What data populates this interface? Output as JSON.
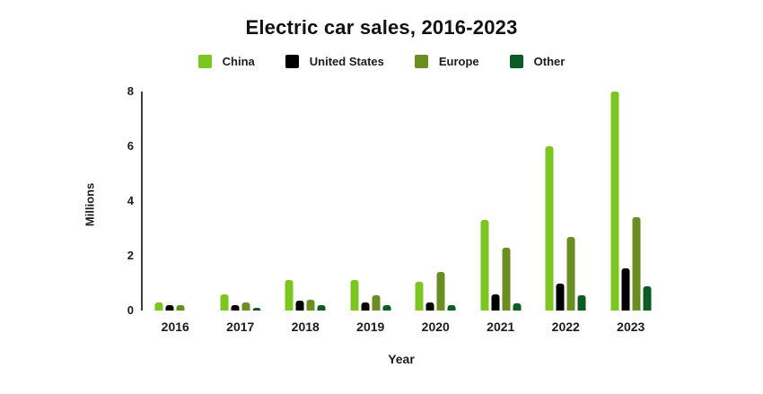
{
  "chart_data": {
    "type": "bar",
    "title": "Electric car sales, 2016-2023",
    "xlabel": "Year",
    "ylabel": "Millions",
    "ylim": [
      0,
      8
    ],
    "yticks": [
      0,
      2,
      4,
      6,
      8
    ],
    "grid": false,
    "legend_position": "top",
    "categories": [
      "2016",
      "2017",
      "2018",
      "2019",
      "2020",
      "2021",
      "2022",
      "2023"
    ],
    "series": [
      {
        "name": "China",
        "color": "#7cc71f",
        "values": [
          0.3,
          0.6,
          1.1,
          1.1,
          1.05,
          3.3,
          6.0,
          8.0
        ]
      },
      {
        "name": "United States",
        "color": "#000000",
        "values": [
          0.2,
          0.2,
          0.35,
          0.3,
          0.3,
          0.6,
          1.0,
          1.55
        ]
      },
      {
        "name": "Europe",
        "color": "#6b8e23",
        "values": [
          0.2,
          0.3,
          0.4,
          0.55,
          1.4,
          2.3,
          2.7,
          3.4
        ]
      },
      {
        "name": "Other",
        "color": "#0b5b24",
        "values": [
          0,
          0.1,
          0.2,
          0.2,
          0.2,
          0.25,
          0.55,
          0.9
        ]
      }
    ],
    "colors": {
      "axis_line": "#3e3e3e",
      "text": "#1c1c1c",
      "background": "#ffffff"
    }
  }
}
